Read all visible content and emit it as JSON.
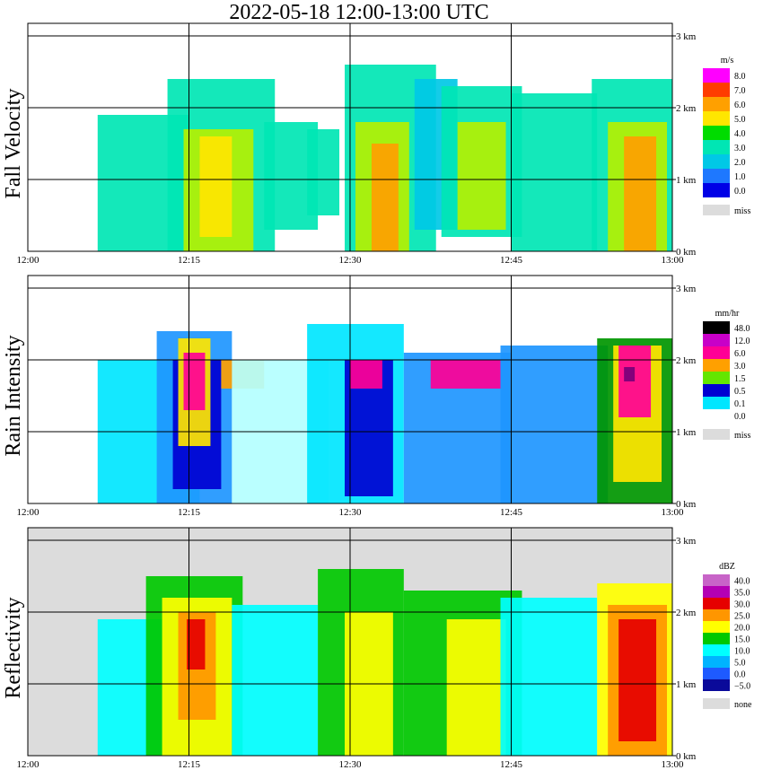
{
  "title": "2022-05-18   12:00-13:00 UTC",
  "colors": {
    "missing": "#dcdcdc",
    "fv": [
      "#0000e6",
      "#1e78ff",
      "#00c8e6",
      "#00e6b4",
      "#00dc00",
      "#b4f000",
      "#ffe600",
      "#ffa000",
      "#ff3c00",
      "#ff00ff"
    ],
    "ri": [
      "#ffffff",
      "#b4ffff",
      "#00e6ff",
      "#1e96ff",
      "#0000d2",
      "#009600",
      "#64e600",
      "#ffe600",
      "#ffa000",
      "#ff0000",
      "#ff0096",
      "#ff64ff",
      "#c800c8",
      "#78007a",
      "#000000"
    ],
    "rf": [
      "#0a0a9a",
      "#1e5aff",
      "#00b4ff",
      "#00ffff",
      "#00c800",
      "#ffff00",
      "#ff9600",
      "#e60000",
      "#b400b4",
      "#c864c8"
    ]
  },
  "chart_data": [
    {
      "type": "heatmap",
      "panel": "fall_velocity",
      "ylabel": "Fall Velocity",
      "unit": "m/s",
      "xticks": [
        "12:00",
        "12:15",
        "12:30",
        "12:45",
        "13:00"
      ],
      "xlim_minutes": [
        0,
        60
      ],
      "yticks": [
        "0 km",
        "1 km",
        "2 km",
        "3 km"
      ],
      "ylim_km": [
        0,
        3
      ],
      "legend": [
        "8.0",
        "7.0",
        "6.0",
        "5.0",
        "4.0",
        "3.0",
        "2.0",
        "1.0",
        "0.0"
      ],
      "missing_label": "miss",
      "cells": [
        {
          "t0": 6.5,
          "t1": 15.0,
          "h0": 0.0,
          "h1": 1.9,
          "v": 3.0
        },
        {
          "t0": 13.0,
          "t1": 23.0,
          "h0": 0.0,
          "h1": 2.4,
          "v": 2.5
        },
        {
          "t0": 14.5,
          "t1": 21.0,
          "h0": 0.0,
          "h1": 1.7,
          "v": 4.5
        },
        {
          "t0": 16.0,
          "t1": 19.0,
          "h0": 0.2,
          "h1": 1.6,
          "v": 6.0
        },
        {
          "t0": 22.0,
          "t1": 27.0,
          "h0": 0.3,
          "h1": 1.8,
          "v": 3.0
        },
        {
          "t0": 26.0,
          "t1": 29.0,
          "h0": 0.5,
          "h1": 1.7,
          "v": 2.5
        },
        {
          "t0": 29.5,
          "t1": 38.0,
          "h0": 0.0,
          "h1": 2.6,
          "v": 3.0
        },
        {
          "t0": 30.5,
          "t1": 35.5,
          "h0": 0.0,
          "h1": 1.8,
          "v": 5.0
        },
        {
          "t0": 32.0,
          "t1": 34.5,
          "h0": 0.0,
          "h1": 1.5,
          "v": 7.0
        },
        {
          "t0": 36.0,
          "t1": 40.0,
          "h0": 0.3,
          "h1": 2.4,
          "v": 2.0
        },
        {
          "t0": 38.5,
          "t1": 46.0,
          "h0": 0.2,
          "h1": 2.3,
          "v": 3.0
        },
        {
          "t0": 40.0,
          "t1": 44.5,
          "h0": 0.3,
          "h1": 1.8,
          "v": 4.5
        },
        {
          "t0": 45.0,
          "t1": 53.0,
          "h0": 0.0,
          "h1": 2.2,
          "v": 2.5
        },
        {
          "t0": 52.5,
          "t1": 60.0,
          "h0": 0.0,
          "h1": 2.4,
          "v": 3.0
        },
        {
          "t0": 54.0,
          "t1": 59.5,
          "h0": 0.0,
          "h1": 1.8,
          "v": 5.0
        },
        {
          "t0": 55.5,
          "t1": 58.5,
          "h0": 0.0,
          "h1": 1.6,
          "v": 7.0
        }
      ]
    },
    {
      "type": "heatmap",
      "panel": "rain_intensity",
      "ylabel": "Rain Intensity",
      "unit": "mm/hr",
      "xticks": [
        "12:00",
        "12:15",
        "12:30",
        "12:45",
        "13:00"
      ],
      "xlim_minutes": [
        0,
        60
      ],
      "yticks": [
        "0 km",
        "1 km",
        "2 km",
        "3 km"
      ],
      "ylim_km": [
        0,
        3
      ],
      "legend": [
        "48.0",
        "12.0",
        "6.0",
        "3.0",
        "1.5",
        "0.5",
        "0.1",
        "0.0"
      ],
      "missing_label": "miss",
      "cells": [
        {
          "t0": 6.5,
          "t1": 16.0,
          "h0": 0.0,
          "h1": 2.0,
          "v": 2
        },
        {
          "t0": 12.0,
          "t1": 19.0,
          "h0": 0.0,
          "h1": 2.4,
          "v": 3
        },
        {
          "t0": 13.5,
          "t1": 18.0,
          "h0": 0.2,
          "h1": 2.0,
          "v": 4
        },
        {
          "t0": 14.0,
          "t1": 17.0,
          "h0": 0.8,
          "h1": 2.3,
          "v": 7
        },
        {
          "t0": 14.5,
          "t1": 16.5,
          "h0": 1.3,
          "h1": 2.1,
          "v": 10
        },
        {
          "t0": 18.0,
          "t1": 22.0,
          "h0": 1.6,
          "h1": 2.0,
          "v": 8
        },
        {
          "t0": 19.0,
          "t1": 28.0,
          "h0": 0.0,
          "h1": 2.0,
          "v": 1
        },
        {
          "t0": 26.0,
          "t1": 35.0,
          "h0": 0.0,
          "h1": 2.5,
          "v": 2
        },
        {
          "t0": 29.5,
          "t1": 34.0,
          "h0": 0.1,
          "h1": 2.0,
          "v": 4
        },
        {
          "t0": 30.0,
          "t1": 33.0,
          "h0": 1.6,
          "h1": 2.0,
          "v": 10
        },
        {
          "t0": 35.0,
          "t1": 45.0,
          "h0": 0.0,
          "h1": 2.1,
          "v": 3
        },
        {
          "t0": 37.5,
          "t1": 44.0,
          "h0": 1.6,
          "h1": 2.0,
          "v": 10
        },
        {
          "t0": 44.0,
          "t1": 54.0,
          "h0": 0.0,
          "h1": 2.2,
          "v": 3
        },
        {
          "t0": 53.0,
          "t1": 60.0,
          "h0": 0.0,
          "h1": 2.3,
          "v": 5
        },
        {
          "t0": 54.5,
          "t1": 59.0,
          "h0": 0.3,
          "h1": 2.2,
          "v": 7
        },
        {
          "t0": 55.0,
          "t1": 58.0,
          "h0": 1.2,
          "h1": 2.2,
          "v": 10
        },
        {
          "t0": 55.5,
          "t1": 56.5,
          "h0": 1.7,
          "h1": 1.9,
          "v": 13
        }
      ]
    },
    {
      "type": "heatmap",
      "panel": "reflectivity",
      "ylabel": "Reflectivity",
      "unit": "dBZ",
      "xticks": [
        "12:00",
        "12:15",
        "12:30",
        "12:45",
        "13:00"
      ],
      "xlim_minutes": [
        0,
        60
      ],
      "yticks": [
        "0 km",
        "1 km",
        "2 km",
        "3 km"
      ],
      "ylim_km": [
        0,
        3
      ],
      "legend": [
        "40.0",
        "35.0",
        "30.0",
        "25.0",
        "20.0",
        "15.0",
        "10.0",
        "5.0",
        "0.0",
        "−5.0"
      ],
      "missing_label": "none",
      "cells": [
        {
          "t0": 6.5,
          "t1": 15.0,
          "h0": 0.0,
          "h1": 1.9,
          "v": 3
        },
        {
          "t0": 11.0,
          "t1": 20.0,
          "h0": 0.0,
          "h1": 2.5,
          "v": 4
        },
        {
          "t0": 12.5,
          "t1": 19.0,
          "h0": 0.0,
          "h1": 2.2,
          "v": 5
        },
        {
          "t0": 14.0,
          "t1": 17.5,
          "h0": 0.5,
          "h1": 2.0,
          "v": 6
        },
        {
          "t0": 14.8,
          "t1": 16.5,
          "h0": 1.2,
          "h1": 1.9,
          "v": 7
        },
        {
          "t0": 19.0,
          "t1": 27.0,
          "h0": 0.0,
          "h1": 2.1,
          "v": 3
        },
        {
          "t0": 27.0,
          "t1": 35.0,
          "h0": 0.0,
          "h1": 2.6,
          "v": 4
        },
        {
          "t0": 29.5,
          "t1": 34.0,
          "h0": 0.0,
          "h1": 2.0,
          "v": 5
        },
        {
          "t0": 35.0,
          "t1": 46.0,
          "h0": 0.0,
          "h1": 2.3,
          "v": 4
        },
        {
          "t0": 39.0,
          "t1": 44.5,
          "h0": 0.0,
          "h1": 1.9,
          "v": 5
        },
        {
          "t0": 44.0,
          "t1": 53.0,
          "h0": 0.0,
          "h1": 2.2,
          "v": 3
        },
        {
          "t0": 53.0,
          "t1": 60.0,
          "h0": 0.0,
          "h1": 2.4,
          "v": 5
        },
        {
          "t0": 54.0,
          "t1": 59.5,
          "h0": 0.0,
          "h1": 2.1,
          "v": 6
        },
        {
          "t0": 55.0,
          "t1": 58.5,
          "h0": 0.2,
          "h1": 1.9,
          "v": 7
        }
      ]
    }
  ]
}
